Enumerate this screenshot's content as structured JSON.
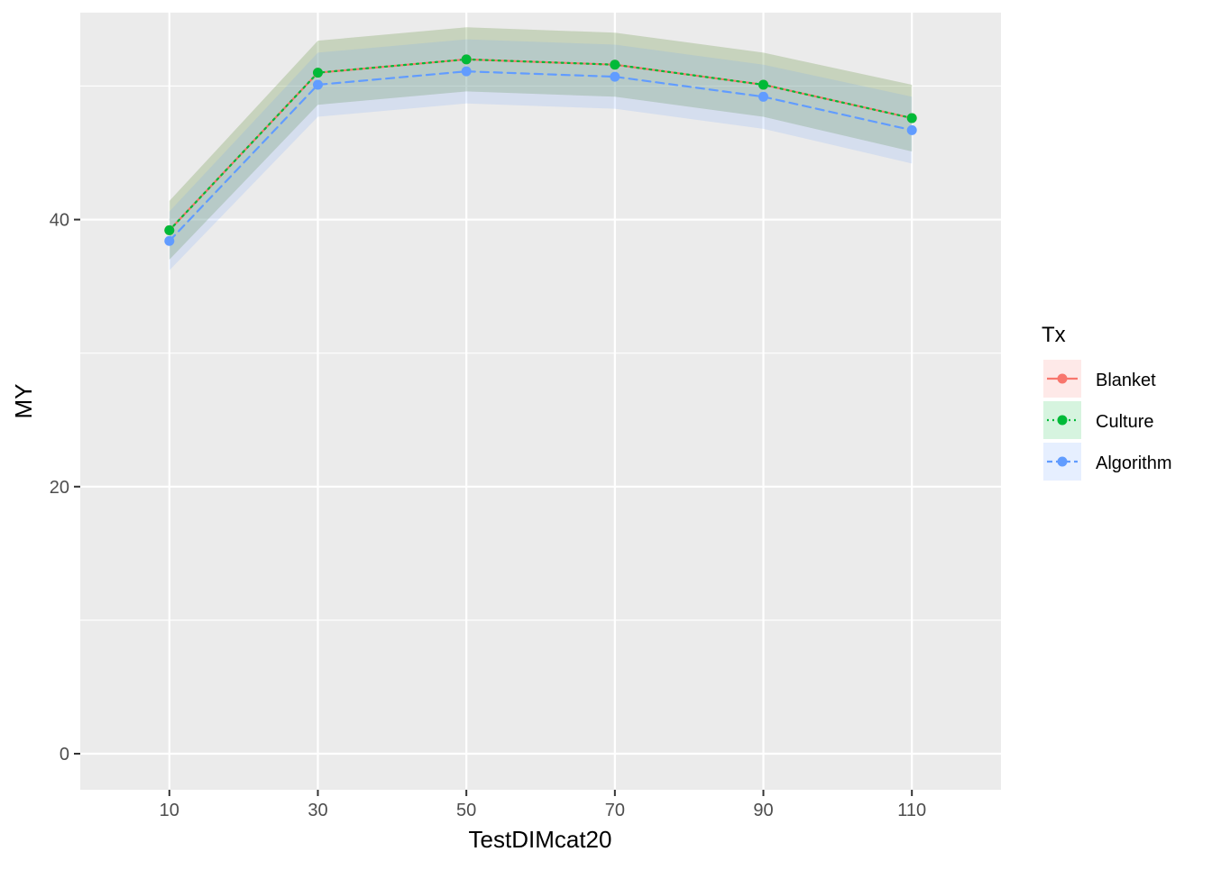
{
  "chart_data": {
    "type": "line",
    "title": "",
    "xlabel": "TestDIMcat20",
    "ylabel": "MY",
    "x": [
      10,
      30,
      50,
      70,
      90,
      110
    ],
    "xticks": [
      10,
      30,
      50,
      70,
      90,
      110
    ],
    "xlim": [
      -2,
      122
    ],
    "yticks": [
      0,
      20,
      40
    ],
    "ylim": [
      -2.7,
      55.5
    ],
    "grid": true,
    "legend_position": "right",
    "legend_title": "Tx",
    "series": [
      {
        "name": "Blanket",
        "color": "#F8766D",
        "linestyle": "solid",
        "values": [
          39.2,
          51.0,
          52.0,
          51.6,
          50.1,
          47.6
        ],
        "lower": [
          37.0,
          48.6,
          49.6,
          49.2,
          47.7,
          45.1
        ],
        "upper": [
          41.4,
          53.4,
          54.4,
          54.0,
          52.5,
          50.1
        ]
      },
      {
        "name": "Culture",
        "color": "#00BA38",
        "linestyle": "dotted",
        "values": [
          39.2,
          51.0,
          52.0,
          51.6,
          50.1,
          47.6
        ],
        "lower": [
          37.0,
          48.6,
          49.6,
          49.2,
          47.7,
          45.1
        ],
        "upper": [
          41.4,
          53.4,
          54.4,
          54.0,
          52.5,
          50.1
        ]
      },
      {
        "name": "Algorithm",
        "color": "#619CFF",
        "linestyle": "dashed",
        "values": [
          38.4,
          50.1,
          51.1,
          50.7,
          49.2,
          46.7
        ],
        "lower": [
          36.2,
          47.7,
          48.7,
          48.3,
          46.8,
          44.2
        ],
        "upper": [
          40.6,
          52.5,
          53.5,
          53.1,
          51.6,
          49.2
        ]
      }
    ]
  }
}
